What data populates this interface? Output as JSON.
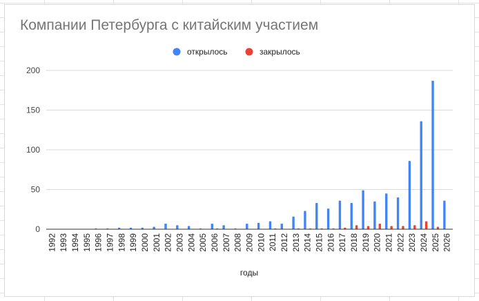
{
  "chart_data": {
    "type": "bar",
    "title": "Компании Петербурга с китайским участием",
    "xlabel": "годы",
    "ylabel": "",
    "ylim": [
      0,
      200
    ],
    "yticks": [
      0,
      50,
      100,
      150,
      200
    ],
    "grid": true,
    "legend_position": "top",
    "categories": [
      "1992",
      "1993",
      "1994",
      "1995",
      "1996",
      "1997",
      "1998",
      "1999",
      "2000",
      "2001",
      "2002",
      "2003",
      "2004",
      "2005",
      "2006",
      "2007",
      "2008",
      "2009",
      "2010",
      "2011",
      "2012",
      "2013",
      "2014",
      "2015",
      "2016",
      "2017",
      "2018",
      "2019",
      "2020",
      "2021",
      "2022",
      "2023",
      "2024",
      "2025",
      "2026"
    ],
    "series": [
      {
        "name": "открылось",
        "color": "#4285f4",
        "values": [
          0,
          0,
          0,
          0,
          1,
          1,
          2,
          2,
          2,
          3,
          7,
          5,
          4,
          1,
          7,
          5,
          1,
          7,
          8,
          10,
          7,
          16,
          23,
          33,
          26,
          36,
          33,
          49,
          35,
          45,
          40,
          86,
          136,
          187,
          36
        ]
      },
      {
        "name": "закрылось",
        "color": "#ea4335",
        "values": [
          0,
          0,
          0,
          0,
          0,
          0,
          0,
          0,
          0,
          0,
          0,
          0,
          0,
          0,
          1,
          0,
          0,
          0,
          0,
          1,
          0,
          1,
          1,
          1,
          1,
          2,
          5,
          4,
          7,
          4,
          4,
          5,
          10,
          3,
          0
        ]
      }
    ]
  }
}
